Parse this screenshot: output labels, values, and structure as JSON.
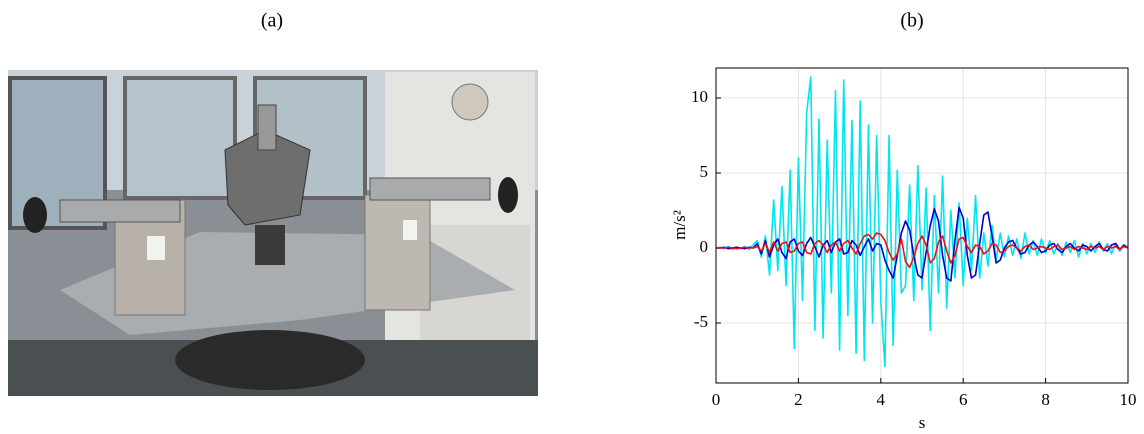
{
  "panels": {
    "a": "(a)",
    "b": "(b)"
  },
  "chart_data": {
    "type": "line",
    "xlabel": "s",
    "ylabel": "m/s²",
    "xlim": [
      0,
      10
    ],
    "ylim": [
      -9,
      12
    ],
    "xticks": [
      0,
      2,
      4,
      6,
      8,
      10
    ],
    "yticks": [
      -5,
      0,
      5,
      10
    ],
    "grid": true,
    "x": [
      0,
      0.1,
      0.2,
      0.3,
      0.4,
      0.5,
      0.6,
      0.7,
      0.8,
      0.9,
      1,
      1.1,
      1.2,
      1.3,
      1.4,
      1.5,
      1.6,
      1.7,
      1.8,
      1.9,
      2,
      2.1,
      2.2,
      2.3,
      2.4,
      2.5,
      2.6,
      2.7,
      2.8,
      2.9,
      3,
      3.1,
      3.2,
      3.3,
      3.4,
      3.5,
      3.6,
      3.7,
      3.8,
      3.9,
      4,
      4.1,
      4.2,
      4.3,
      4.4,
      4.5,
      4.6,
      4.7,
      4.8,
      4.9,
      5,
      5.1,
      5.2,
      5.3,
      5.4,
      5.5,
      5.6,
      5.7,
      5.8,
      5.9,
      6,
      6.1,
      6.2,
      6.3,
      6.4,
      6.5,
      6.6,
      6.7,
      6.8,
      6.9,
      7,
      7.1,
      7.2,
      7.3,
      7.4,
      7.5,
      7.6,
      7.7,
      7.8,
      7.9,
      8,
      8.1,
      8.2,
      8.3,
      8.4,
      8.5,
      8.6,
      8.7,
      8.8,
      8.9,
      9,
      9.1,
      9.2,
      9.3,
      9.4,
      9.5,
      9.6,
      9.7,
      9.8,
      9.9,
      10
    ],
    "series": [
      {
        "color": "#00e5ee",
        "values": [
          0,
          0.05,
          -0.05,
          0.1,
          -0.1,
          0.05,
          -0.05,
          0.1,
          -0.1,
          0.2,
          0.5,
          -0.6,
          0.8,
          -1.8,
          3.2,
          -1.5,
          4.1,
          -2.5,
          5.2,
          -6.7,
          6.0,
          -3.5,
          9.0,
          11.4,
          -5.5,
          8.6,
          -6.0,
          7.2,
          -3.0,
          10.5,
          -6.8,
          11.2,
          -4.5,
          8.5,
          -7.0,
          9.8,
          -7.5,
          8.2,
          -5.0,
          7.5,
          -3.5,
          -7.9,
          7.5,
          -6.5,
          5.2,
          -3.0,
          -2.5,
          4.2,
          -3.5,
          5.5,
          -2.8,
          4.0,
          -5.5,
          3.5,
          -3.0,
          4.8,
          -4.0,
          2.5,
          -2.0,
          3.0,
          -2.5,
          2.0,
          -1.5,
          3.5,
          -2.0,
          1.0,
          -1.2,
          1.5,
          -0.8,
          1.0,
          -0.6,
          0.8,
          -0.5,
          0.6,
          -0.7,
          1.0,
          -0.4,
          0.5,
          -0.5,
          0.6,
          -0.3,
          0.5,
          -0.4,
          0.3,
          -0.5,
          0.4,
          -0.3,
          0.5,
          -0.6,
          0.3,
          -0.4,
          0.3,
          -0.3,
          0.4,
          -0.2,
          0.3,
          -0.4,
          0.3,
          -0.2,
          0.2,
          0
        ]
      },
      {
        "color": "#0000cc",
        "values": [
          0,
          0,
          0.05,
          -0.05,
          0,
          0.05,
          0,
          -0.05,
          0.05,
          0,
          0.3,
          -0.4,
          0.5,
          -0.6,
          0.2,
          0.6,
          -0.3,
          -0.7,
          0.4,
          0.6,
          -0.2,
          -0.5,
          0.3,
          0.7,
          0.1,
          -0.6,
          0.2,
          0.5,
          -0.3,
          0.4,
          0.6,
          -0.4,
          -0.3,
          0.5,
          0.2,
          -0.5,
          0.1,
          0.6,
          -0.2,
          0.3,
          0.2,
          -0.8,
          -1.5,
          -2.0,
          -0.5,
          1.0,
          1.8,
          1.2,
          -0.5,
          -1.8,
          -2.0,
          -0.3,
          1.5,
          2.6,
          1.8,
          -0.5,
          -2.0,
          -2.2,
          0.5,
          2.7,
          2.0,
          -0.5,
          -2.0,
          -1.8,
          0.3,
          2.2,
          2.4,
          0.8,
          -1.0,
          -0.8,
          0,
          0.4,
          0.5,
          0,
          -0.4,
          -0.3,
          0.2,
          0.4,
          0.1,
          -0.3,
          -0.2,
          0.2,
          0.3,
          -0.1,
          -0.3,
          0.1,
          0.3,
          0,
          -0.2,
          0.2,
          0.1,
          -0.2,
          0.1,
          0.3,
          -0.1,
          -0.2,
          0.2,
          0.3,
          -0.1,
          0.2,
          0
        ]
      },
      {
        "color": "#ee1111",
        "values": [
          0,
          0,
          0,
          0.05,
          0,
          -0.05,
          0,
          0.05,
          0,
          0,
          0.1,
          -0.2,
          0.3,
          -0.3,
          0.4,
          -0.2,
          0.3,
          0.4,
          -0.3,
          -0.2,
          0.3,
          0.4,
          -0.3,
          -0.4,
          0.3,
          0.5,
          0.2,
          -0.3,
          0.2,
          0.4,
          -0.2,
          0.3,
          0.5,
          0,
          -0.4,
          0.3,
          0.8,
          0.9,
          0.6,
          1.0,
          0.9,
          0.5,
          -0.3,
          -0.8,
          -0.4,
          0.6,
          -0.9,
          -1.3,
          -0.6,
          0.3,
          0.8,
          0.2,
          -1.0,
          -0.7,
          0.4,
          0.8,
          -0.2,
          -1.0,
          -0.5,
          0.6,
          0.7,
          0.1,
          -0.3,
          0.2,
          0.1,
          -0.4,
          -0.2,
          0.3,
          0.2,
          -0.3,
          -0.2,
          0.1,
          0.2,
          0,
          -0.2,
          0.1,
          0.2,
          -0.1,
          0,
          0.1,
          0,
          -0.1,
          0.1,
          0.2,
          -0.1,
          0,
          0.1,
          -0.1,
          0.1,
          0,
          -0.1,
          0.1,
          0,
          0.1,
          -0.1,
          0.1,
          0,
          0.1,
          -0.1,
          0.1,
          0
        ]
      }
    ]
  }
}
